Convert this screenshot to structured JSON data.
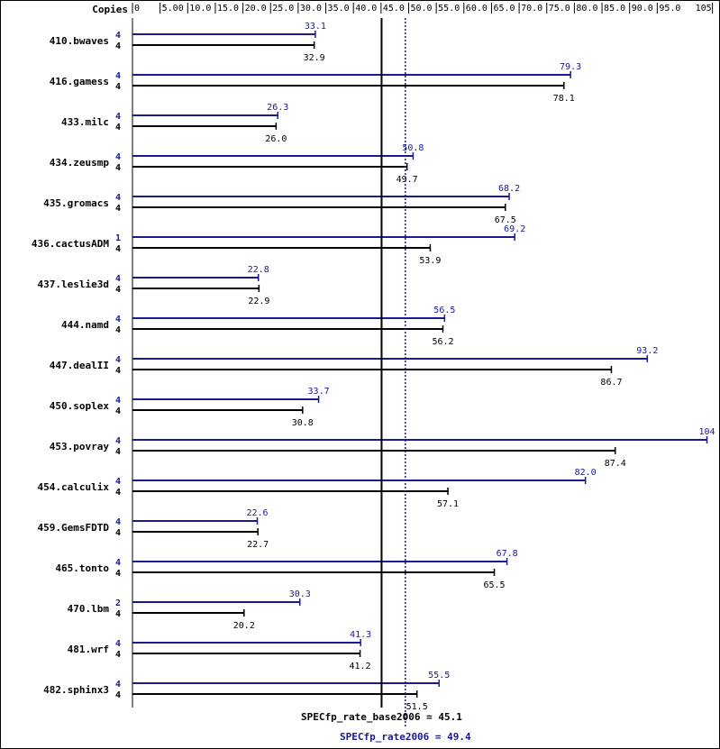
{
  "chart_data": {
    "type": "bar",
    "orientation": "horizontal",
    "header_label": "Copies",
    "x_ticks": [
      "0",
      "5.00",
      "10.0",
      "15.0",
      "20.0",
      "25.0",
      "30.0",
      "35.0",
      "40.0",
      "45.0",
      "50.0",
      "55.0",
      "60.0",
      "65.0",
      "70.0",
      "75.0",
      "80.0",
      "85.0",
      "90.0",
      "95.0",
      "105"
    ],
    "x_tick_values": [
      0,
      5,
      10,
      15,
      20,
      25,
      30,
      35,
      40,
      45,
      50,
      55,
      60,
      65,
      70,
      75,
      80,
      85,
      90,
      95,
      105
    ],
    "xlim": [
      0,
      105
    ],
    "series": [
      {
        "name": "SPECfp_rate2006",
        "color": "#191996"
      },
      {
        "name": "SPECfp_rate_base2006",
        "color": "#000000"
      }
    ],
    "benchmarks": [
      {
        "name": "410.bwaves",
        "peak_copies": "4",
        "peak": 33.1,
        "peak_label": "33.1",
        "base_copies": "4",
        "base": 32.9,
        "base_label": "32.9"
      },
      {
        "name": "416.gamess",
        "peak_copies": "4",
        "peak": 79.3,
        "peak_label": "79.3",
        "base_copies": "4",
        "base": 78.1,
        "base_label": "78.1"
      },
      {
        "name": "433.milc",
        "peak_copies": "4",
        "peak": 26.3,
        "peak_label": "26.3",
        "base_copies": "4",
        "base": 26.0,
        "base_label": "26.0"
      },
      {
        "name": "434.zeusmp",
        "peak_copies": "4",
        "peak": 50.8,
        "peak_label": "50.8",
        "base_copies": "4",
        "base": 49.7,
        "base_label": "49.7"
      },
      {
        "name": "435.gromacs",
        "peak_copies": "4",
        "peak": 68.2,
        "peak_label": "68.2",
        "base_copies": "4",
        "base": 67.5,
        "base_label": "67.5"
      },
      {
        "name": "436.cactusADM",
        "peak_copies": "1",
        "peak": 69.2,
        "peak_label": "69.2",
        "base_copies": "4",
        "base": 53.9,
        "base_label": "53.9"
      },
      {
        "name": "437.leslie3d",
        "peak_copies": "4",
        "peak": 22.8,
        "peak_label": "22.8",
        "base_copies": "4",
        "base": 22.9,
        "base_label": "22.9"
      },
      {
        "name": "444.namd",
        "peak_copies": "4",
        "peak": 56.5,
        "peak_label": "56.5",
        "base_copies": "4",
        "base": 56.2,
        "base_label": "56.2"
      },
      {
        "name": "447.dealII",
        "peak_copies": "4",
        "peak": 93.2,
        "peak_label": "93.2",
        "base_copies": "4",
        "base": 86.7,
        "base_label": "86.7"
      },
      {
        "name": "450.soplex",
        "peak_copies": "4",
        "peak": 33.7,
        "peak_label": "33.7",
        "base_copies": "4",
        "base": 30.8,
        "base_label": "30.8"
      },
      {
        "name": "453.povray",
        "peak_copies": "4",
        "peak": 104,
        "peak_label": "104",
        "base_copies": "4",
        "base": 87.4,
        "base_label": "87.4"
      },
      {
        "name": "454.calculix",
        "peak_copies": "4",
        "peak": 82.0,
        "peak_label": "82.0",
        "base_copies": "4",
        "base": 57.1,
        "base_label": "57.1"
      },
      {
        "name": "459.GemsFDTD",
        "peak_copies": "4",
        "peak": 22.6,
        "peak_label": "22.6",
        "base_copies": "4",
        "base": 22.7,
        "base_label": "22.7"
      },
      {
        "name": "465.tonto",
        "peak_copies": "4",
        "peak": 67.8,
        "peak_label": "67.8",
        "base_copies": "4",
        "base": 65.5,
        "base_label": "65.5"
      },
      {
        "name": "470.lbm",
        "peak_copies": "2",
        "peak": 30.3,
        "peak_label": "30.3",
        "base_copies": "4",
        "base": 20.2,
        "base_label": "20.2"
      },
      {
        "name": "481.wrf",
        "peak_copies": "4",
        "peak": 41.3,
        "peak_label": "41.3",
        "base_copies": "4",
        "base": 41.2,
        "base_label": "41.2"
      },
      {
        "name": "482.sphinx3",
        "peak_copies": "4",
        "peak": 55.5,
        "peak_label": "55.5",
        "base_copies": "4",
        "base": 51.5,
        "base_label": "51.5"
      }
    ],
    "summary": {
      "base_label": "SPECfp_rate_base2006 = 45.1",
      "base_value": 45.1,
      "peak_label": "SPECfp_rate2006 = 49.4",
      "peak_value": 49.4
    },
    "colors": {
      "peak": "#191996",
      "base": "#000000",
      "frame": "#000000"
    }
  }
}
